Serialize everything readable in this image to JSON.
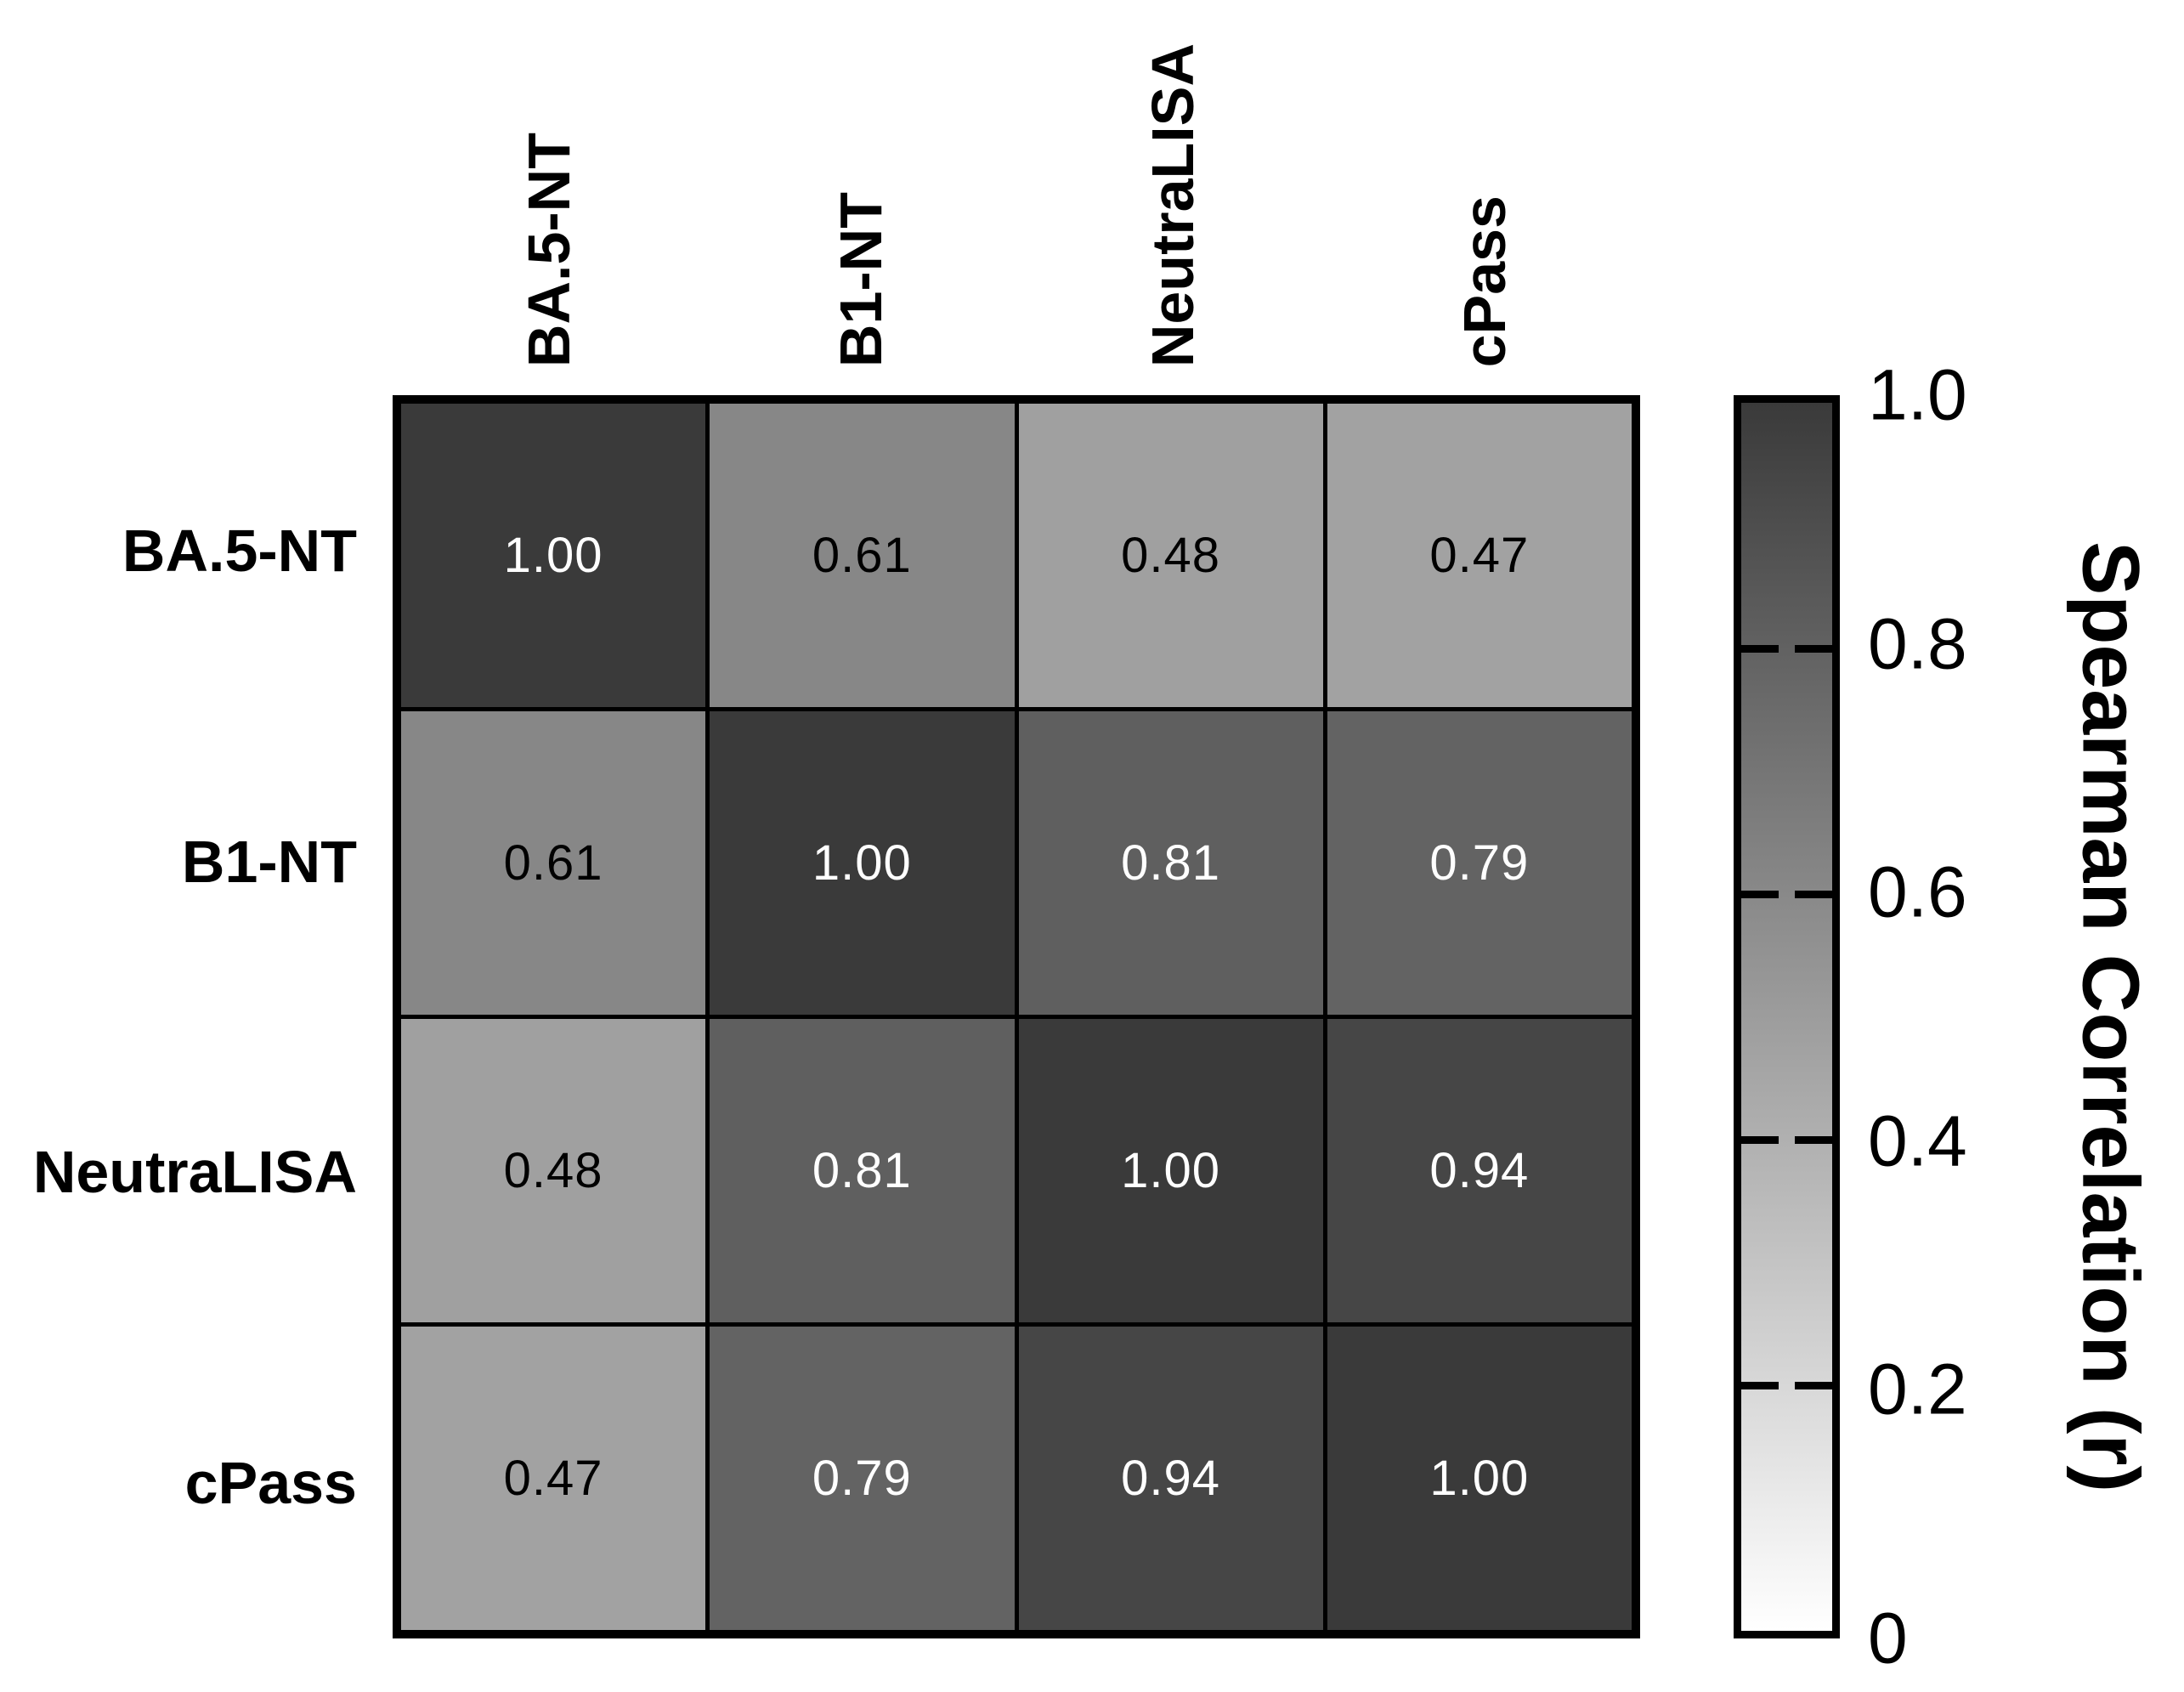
{
  "chart_data": {
    "type": "heatmap",
    "title": "",
    "axis_labels": [
      "BA.5-NT",
      "B1-NT",
      "NeutraLISA",
      "cPass"
    ],
    "matrix": [
      [
        1.0,
        0.61,
        0.48,
        0.47
      ],
      [
        0.61,
        1.0,
        0.81,
        0.79
      ],
      [
        0.48,
        0.81,
        1.0,
        0.94
      ],
      [
        0.47,
        0.79,
        0.94,
        1.0
      ]
    ],
    "cell_labels": [
      [
        "1.00",
        "0.61",
        "0.48",
        "0.47"
      ],
      [
        "0.61",
        "1.00",
        "0.81",
        "0.79"
      ],
      [
        "0.48",
        "0.81",
        "1.00",
        "0.94"
      ],
      [
        "0.47",
        "0.79",
        "0.94",
        "1.00"
      ]
    ],
    "value_range": [
      0,
      1
    ],
    "grid_on": true,
    "legend_position": "right",
    "cell_text_colors": {
      "light": "#FFFFFF",
      "dark": "#000000",
      "light_text_threshold": 0.7
    },
    "colorbar": {
      "label": "Spearman Correlation (r)",
      "tick_labels": [
        "1.0",
        "0.8",
        "0.6",
        "0.4",
        "0.2",
        "0"
      ],
      "tick_values": [
        1.0,
        0.8,
        0.6,
        0.4,
        0.2,
        0.0
      ],
      "marked_tick_values": [
        0.8,
        0.6,
        0.4,
        0.2
      ],
      "color_high": "#3A3A3A",
      "color_low": "#FFFFFF"
    }
  }
}
